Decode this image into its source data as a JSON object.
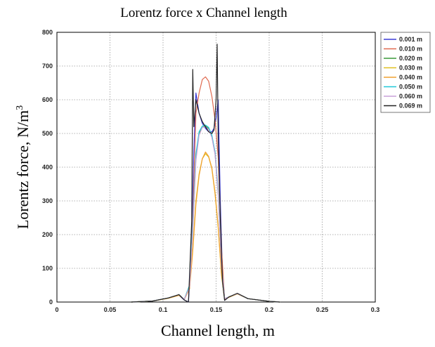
{
  "chart_data": {
    "type": "line",
    "title": "Lorentz force x Channel length",
    "xlabel": "Channel length, m",
    "ylabel": "Lorentz force, N/m",
    "ylabel_sup": "3",
    "xlim": [
      0,
      0.3
    ],
    "ylim": [
      0,
      800
    ],
    "xticks": [
      "0",
      "0.05",
      "0.1",
      "0.15",
      "0.2",
      "0.25",
      "0.3"
    ],
    "yticks": [
      "0",
      "100",
      "200",
      "300",
      "400",
      "500",
      "600",
      "700",
      "800"
    ],
    "grid": true,
    "legend_position": "right",
    "series": [
      {
        "name": "0.001 m",
        "color": "#3b3bd6",
        "x": [
          0.07,
          0.09,
          0.105,
          0.115,
          0.12,
          0.124,
          0.127,
          0.129,
          0.131,
          0.134,
          0.137,
          0.14,
          0.143,
          0.146,
          0.148,
          0.15,
          0.152,
          0.154,
          0.156,
          0.158,
          0.162,
          0.17,
          0.18,
          0.2,
          0.21
        ],
        "y": [
          0,
          3,
          12,
          20,
          6,
          0,
          180,
          450,
          620,
          560,
          530,
          515,
          505,
          505,
          515,
          545,
          600,
          300,
          80,
          5,
          15,
          25,
          10,
          2,
          0
        ]
      },
      {
        "name": "0.010 m",
        "color": "#e06a50",
        "x": [
          0.07,
          0.09,
          0.105,
          0.115,
          0.12,
          0.125,
          0.128,
          0.131,
          0.134,
          0.137,
          0.14,
          0.143,
          0.146,
          0.149,
          0.152,
          0.155,
          0.158,
          0.162,
          0.17,
          0.18,
          0.2,
          0.21
        ],
        "y": [
          0,
          3,
          12,
          22,
          8,
          40,
          250,
          560,
          620,
          660,
          668,
          655,
          610,
          540,
          430,
          160,
          10,
          15,
          25,
          10,
          2,
          0
        ]
      },
      {
        "name": "0.020 m",
        "color": "#3a9a3a",
        "x": [
          0.07,
          0.09,
          0.105,
          0.115,
          0.12,
          0.125,
          0.128,
          0.131,
          0.134,
          0.137,
          0.14,
          0.143,
          0.146,
          0.149,
          0.152,
          0.155,
          0.158,
          0.162,
          0.17,
          0.18,
          0.2,
          0.21
        ],
        "y": [
          0,
          3,
          12,
          22,
          8,
          50,
          220,
          430,
          500,
          518,
          522,
          515,
          490,
          440,
          320,
          110,
          10,
          15,
          25,
          10,
          2,
          0
        ]
      },
      {
        "name": "0.030 m",
        "color": "#e0c020",
        "x": [
          0.07,
          0.09,
          0.105,
          0.115,
          0.12,
          0.125,
          0.128,
          0.131,
          0.134,
          0.137,
          0.14,
          0.143,
          0.146,
          0.149,
          0.152,
          0.155,
          0.158,
          0.162,
          0.17,
          0.18,
          0.2,
          0.21
        ],
        "y": [
          0,
          3,
          11,
          20,
          8,
          45,
          160,
          300,
          380,
          425,
          440,
          430,
          395,
          320,
          220,
          80,
          8,
          14,
          24,
          10,
          2,
          0
        ]
      },
      {
        "name": "0.040 m",
        "color": "#f0a030",
        "x": [
          0.07,
          0.09,
          0.105,
          0.115,
          0.12,
          0.125,
          0.128,
          0.131,
          0.134,
          0.137,
          0.14,
          0.143,
          0.146,
          0.149,
          0.152,
          0.155,
          0.158,
          0.162,
          0.17,
          0.18,
          0.2,
          0.21
        ],
        "y": [
          0,
          3,
          11,
          20,
          8,
          40,
          150,
          290,
          375,
          425,
          445,
          432,
          398,
          325,
          225,
          85,
          8,
          14,
          24,
          10,
          2,
          0
        ]
      },
      {
        "name": "0.050 m",
        "color": "#20c8d8",
        "x": [
          0.07,
          0.09,
          0.105,
          0.115,
          0.12,
          0.125,
          0.128,
          0.131,
          0.134,
          0.137,
          0.14,
          0.143,
          0.146,
          0.149,
          0.152,
          0.155,
          0.158,
          0.162,
          0.17,
          0.18,
          0.2,
          0.21
        ],
        "y": [
          0,
          3,
          12,
          22,
          8,
          50,
          230,
          440,
          505,
          522,
          525,
          518,
          495,
          445,
          330,
          115,
          10,
          15,
          25,
          10,
          2,
          0
        ]
      },
      {
        "name": "0.060 m",
        "color": "#c8a0d8",
        "x": [
          0.07,
          0.09,
          0.105,
          0.115,
          0.12,
          0.125,
          0.128,
          0.131,
          0.134,
          0.137,
          0.14,
          0.143,
          0.146,
          0.149,
          0.152,
          0.155,
          0.158,
          0.162,
          0.17,
          0.18,
          0.2,
          0.21
        ],
        "y": [
          0,
          3,
          12,
          22,
          8,
          45,
          210,
          420,
          495,
          518,
          520,
          512,
          488,
          438,
          320,
          110,
          10,
          15,
          25,
          10,
          2,
          0
        ]
      },
      {
        "name": "0.069 m",
        "color": "#222222",
        "x": [
          0.07,
          0.09,
          0.105,
          0.115,
          0.12,
          0.124,
          0.127,
          0.128,
          0.129,
          0.131,
          0.134,
          0.137,
          0.14,
          0.143,
          0.146,
          0.148,
          0.15,
          0.151,
          0.152,
          0.154,
          0.156,
          0.158,
          0.162,
          0.17,
          0.18,
          0.2,
          0.21
        ],
        "y": [
          0,
          3,
          12,
          22,
          6,
          0,
          240,
          690,
          520,
          600,
          560,
          535,
          520,
          505,
          500,
          510,
          600,
          765,
          480,
          250,
          60,
          5,
          15,
          26,
          10,
          2,
          0
        ]
      }
    ]
  }
}
